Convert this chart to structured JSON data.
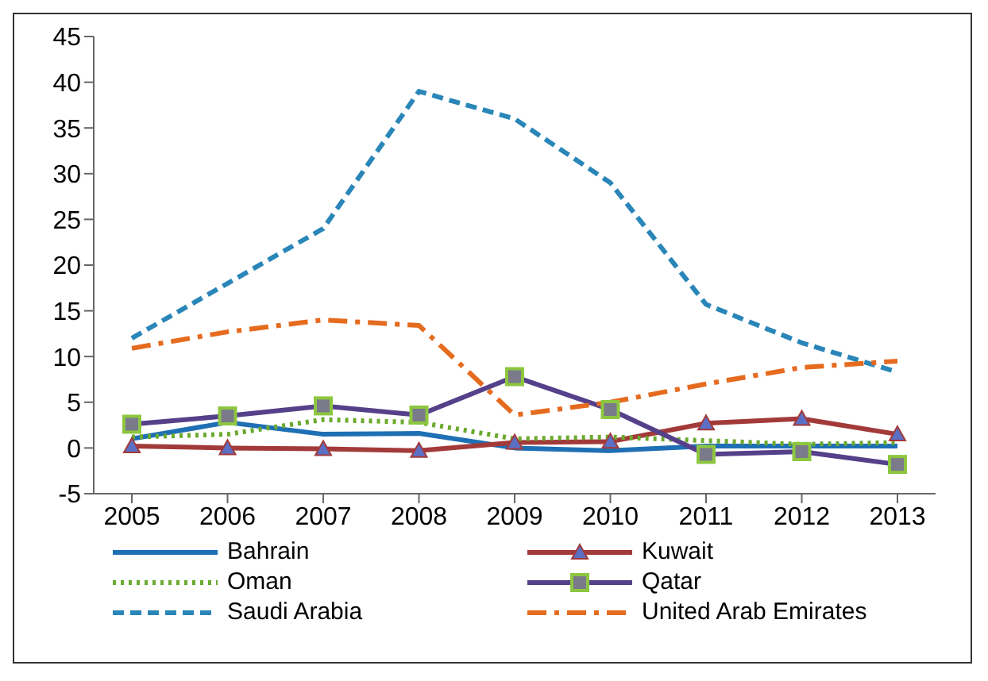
{
  "chart_data": {
    "type": "line",
    "categories": [
      "2005",
      "2006",
      "2007",
      "2008",
      "2009",
      "2010",
      "2011",
      "2012",
      "2013"
    ],
    "ylim": [
      -5,
      45
    ],
    "yticks": [
      -5,
      0,
      5,
      10,
      15,
      20,
      25,
      30,
      35,
      40,
      45
    ],
    "grid": false,
    "legend": "bottom",
    "series": [
      {
        "name": "Bahrain",
        "color": "#1f6fb5",
        "values": [
          1.0,
          2.8,
          1.5,
          1.6,
          0,
          -0.3,
          0.2,
          0.2,
          0.2
        ],
        "marker": "none",
        "line_style": "solid"
      },
      {
        "name": "Kuwait",
        "color": "#a33a3a",
        "values": [
          0.2,
          0,
          -0.1,
          -0.3,
          0.6,
          0.7,
          2.7,
          3.2,
          1.5
        ],
        "marker": "triangle",
        "line_style": "solid"
      },
      {
        "name": "Oman",
        "color": "#6aaa2e",
        "values": [
          1.2,
          1.5,
          3.1,
          2.8,
          1.0,
          1.2,
          0.8,
          0.4,
          0.6
        ],
        "marker": "none",
        "line_style": "dotted"
      },
      {
        "name": "Qatar",
        "color": "#55408a",
        "values": [
          2.6,
          3.5,
          4.6,
          3.6,
          7.8,
          4.2,
          -0.7,
          -0.4,
          -1.8
        ],
        "marker": "square",
        "line_style": "solid"
      },
      {
        "name": "Saudi Arabia",
        "color": "#2a86b8",
        "values": [
          12,
          18,
          24,
          39,
          36,
          29,
          15.7,
          11.5,
          8.3
        ],
        "marker": "none",
        "line_style": "dashed"
      },
      {
        "name": "United Arab Emirates",
        "color": "#e56b1f",
        "values": [
          10.9,
          12.7,
          14,
          13.4,
          3.6,
          5,
          7,
          8.8,
          9.5
        ],
        "marker": "none",
        "line_style": "dashdot"
      }
    ]
  }
}
